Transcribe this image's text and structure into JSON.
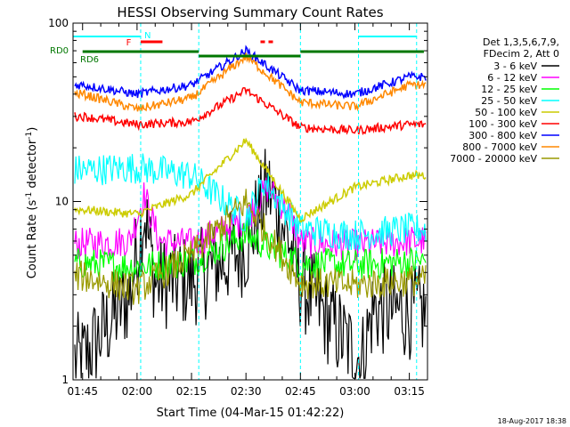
{
  "chart_data": {
    "type": "line",
    "title": "HESSI Observing Summary Count Rates",
    "xlabel": "Start Time (04-Mar-15 01:42:22)",
    "ylabel_main": "Count Rate (s",
    "ylabel_sup": "-1",
    "ylabel_tail": " detector",
    "ylabel_end": ")",
    "ylog": true,
    "ylim": [
      1,
      100
    ],
    "xlim_minutes": [
      "01:42",
      "03:20"
    ],
    "x_ticks": [
      "01:45",
      "02:00",
      "02:15",
      "02:30",
      "02:45",
      "03:00",
      "03:15"
    ],
    "y_ticks": [
      "1",
      "10",
      "100"
    ],
    "legend_header": [
      "Det 1,3,5,6,7,9,",
      "FDecim 2, Att 0"
    ],
    "legend_position": "right",
    "series": [
      {
        "name": "3 - 6 keV",
        "color": "#000000",
        "band": 1,
        "x": [
          "01:45",
          "01:58",
          "02:02",
          "02:05",
          "02:15",
          "02:30",
          "02:36",
          "02:42",
          "02:45",
          "03:00",
          "03:02",
          "03:05",
          "03:15"
        ],
        "y": [
          1.3,
          3.0,
          9.0,
          3.5,
          3.6,
          5.5,
          12.0,
          6.0,
          3.5,
          1.4,
          1.3,
          2.5,
          2.4
        ]
      },
      {
        "name": "6 - 12 keV",
        "color": "#ff00ff",
        "band": 2,
        "x": [
          "01:45",
          "01:58",
          "02:02",
          "02:06",
          "02:15",
          "02:30",
          "02:36",
          "02:42",
          "02:45",
          "03:00",
          "03:15"
        ],
        "y": [
          5.8,
          6.0,
          11.0,
          6.0,
          5.8,
          8.0,
          12.0,
          8.5,
          5.9,
          5.7,
          6.0
        ]
      },
      {
        "name": "12 - 25 keV",
        "color": "#00ff00",
        "band": 3,
        "x": [
          "01:45",
          "02:00",
          "02:15",
          "02:30",
          "02:45",
          "03:00",
          "03:15"
        ],
        "y": [
          4.5,
          4.3,
          4.6,
          6.5,
          4.5,
          4.4,
          4.6
        ]
      },
      {
        "name": "25 - 50 keV",
        "color": "#00ffff",
        "band": 4,
        "x": [
          "01:45",
          "02:00",
          "02:15",
          "02:30",
          "02:35",
          "02:45",
          "03:00",
          "03:15"
        ],
        "y": [
          15.0,
          15.5,
          14.0,
          8.0,
          13.0,
          7.0,
          6.5,
          7.0
        ]
      },
      {
        "name": "50 - 100 keV",
        "color": "#cccc00",
        "band": 5,
        "x": [
          "01:45",
          "02:00",
          "02:15",
          "02:30",
          "02:45",
          "03:00",
          "03:15"
        ],
        "y": [
          9.0,
          8.5,
          11.0,
          22.0,
          8.0,
          12.0,
          14.0
        ]
      },
      {
        "name": "100 - 300 keV",
        "color": "#ff0000",
        "band": 6,
        "x": [
          "01:45",
          "02:00",
          "02:15",
          "02:30",
          "02:45",
          "03:00",
          "03:15"
        ],
        "y": [
          30.0,
          27.0,
          28.0,
          42.0,
          26.0,
          25.0,
          27.0
        ]
      },
      {
        "name": "300 - 800 keV",
        "color": "#0000ff",
        "band": 7,
        "x": [
          "01:45",
          "02:00",
          "02:15",
          "02:30",
          "02:45",
          "03:00",
          "03:15"
        ],
        "y": [
          45.0,
          40.0,
          45.0,
          70.0,
          42.0,
          40.0,
          50.0
        ]
      },
      {
        "name": "800 - 7000 keV",
        "color": "#ff8800",
        "band": 8,
        "x": [
          "01:45",
          "02:00",
          "02:15",
          "02:30",
          "02:45",
          "03:00",
          "03:15"
        ],
        "y": [
          40.0,
          33.0,
          38.0,
          65.0,
          36.0,
          34.0,
          45.0
        ]
      },
      {
        "name": "7000 - 20000 keV",
        "color": "#999900",
        "band": 9,
        "x": [
          "01:45",
          "02:00",
          "02:15",
          "02:30",
          "02:45",
          "03:00",
          "03:15"
        ],
        "y": [
          3.8,
          3.2,
          5.0,
          10.0,
          3.5,
          3.4,
          3.6
        ]
      }
    ],
    "annotations": {
      "rd0_label": "RD0",
      "rd6_label": "RD6",
      "flare_label": "F",
      "night_label": "N",
      "stamp": "18-Aug-2017 18:38"
    }
  }
}
